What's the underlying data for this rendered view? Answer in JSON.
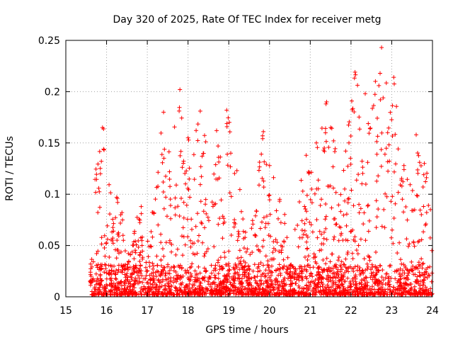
{
  "chart_data": {
    "type": "scatter",
    "title": "Day 320 of 2025, Rate Of TEC Index for receiver metg",
    "xlabel": "GPS time / hours",
    "ylabel": "ROTI / TECUs",
    "xlim": [
      15,
      24
    ],
    "ylim": [
      0,
      0.25
    ],
    "xticks": [
      "15",
      "16",
      "17",
      "18",
      "19",
      "20",
      "21",
      "22",
      "23",
      "24"
    ],
    "yticks": [
      "0",
      "0.05",
      "0.1",
      "0.15",
      "0.2",
      "0.25"
    ],
    "grid": true,
    "marker": "+",
    "color": "#ff0000",
    "x_start": 15.6,
    "x_end": 24.0,
    "peaks": [
      {
        "x": 15.9,
        "y": 0.165
      },
      {
        "x": 15.85,
        "y": 0.12
      },
      {
        "x": 16.25,
        "y": 0.097
      },
      {
        "x": 16.85,
        "y": 0.088
      },
      {
        "x": 17.4,
        "y": 0.18
      },
      {
        "x": 17.8,
        "y": 0.202
      },
      {
        "x": 18.0,
        "y": 0.155
      },
      {
        "x": 18.3,
        "y": 0.181
      },
      {
        "x": 18.7,
        "y": 0.162
      },
      {
        "x": 18.95,
        "y": 0.182
      },
      {
        "x": 19.2,
        "y": 0.123
      },
      {
        "x": 19.85,
        "y": 0.161
      },
      {
        "x": 20.0,
        "y": 0.128
      },
      {
        "x": 20.25,
        "y": 0.095
      },
      {
        "x": 20.9,
        "y": 0.138
      },
      {
        "x": 21.15,
        "y": 0.15
      },
      {
        "x": 21.4,
        "y": 0.19
      },
      {
        "x": 21.5,
        "y": 0.165
      },
      {
        "x": 21.95,
        "y": 0.15
      },
      {
        "x": 22.1,
        "y": 0.219
      },
      {
        "x": 22.35,
        "y": 0.198
      },
      {
        "x": 22.6,
        "y": 0.21
      },
      {
        "x": 22.75,
        "y": 0.243
      },
      {
        "x": 22.9,
        "y": 0.16
      },
      {
        "x": 23.05,
        "y": 0.214
      },
      {
        "x": 23.3,
        "y": 0.128
      },
      {
        "x": 23.6,
        "y": 0.158
      },
      {
        "x": 23.8,
        "y": 0.13
      },
      {
        "x": 23.95,
        "y": 0.085
      }
    ]
  }
}
